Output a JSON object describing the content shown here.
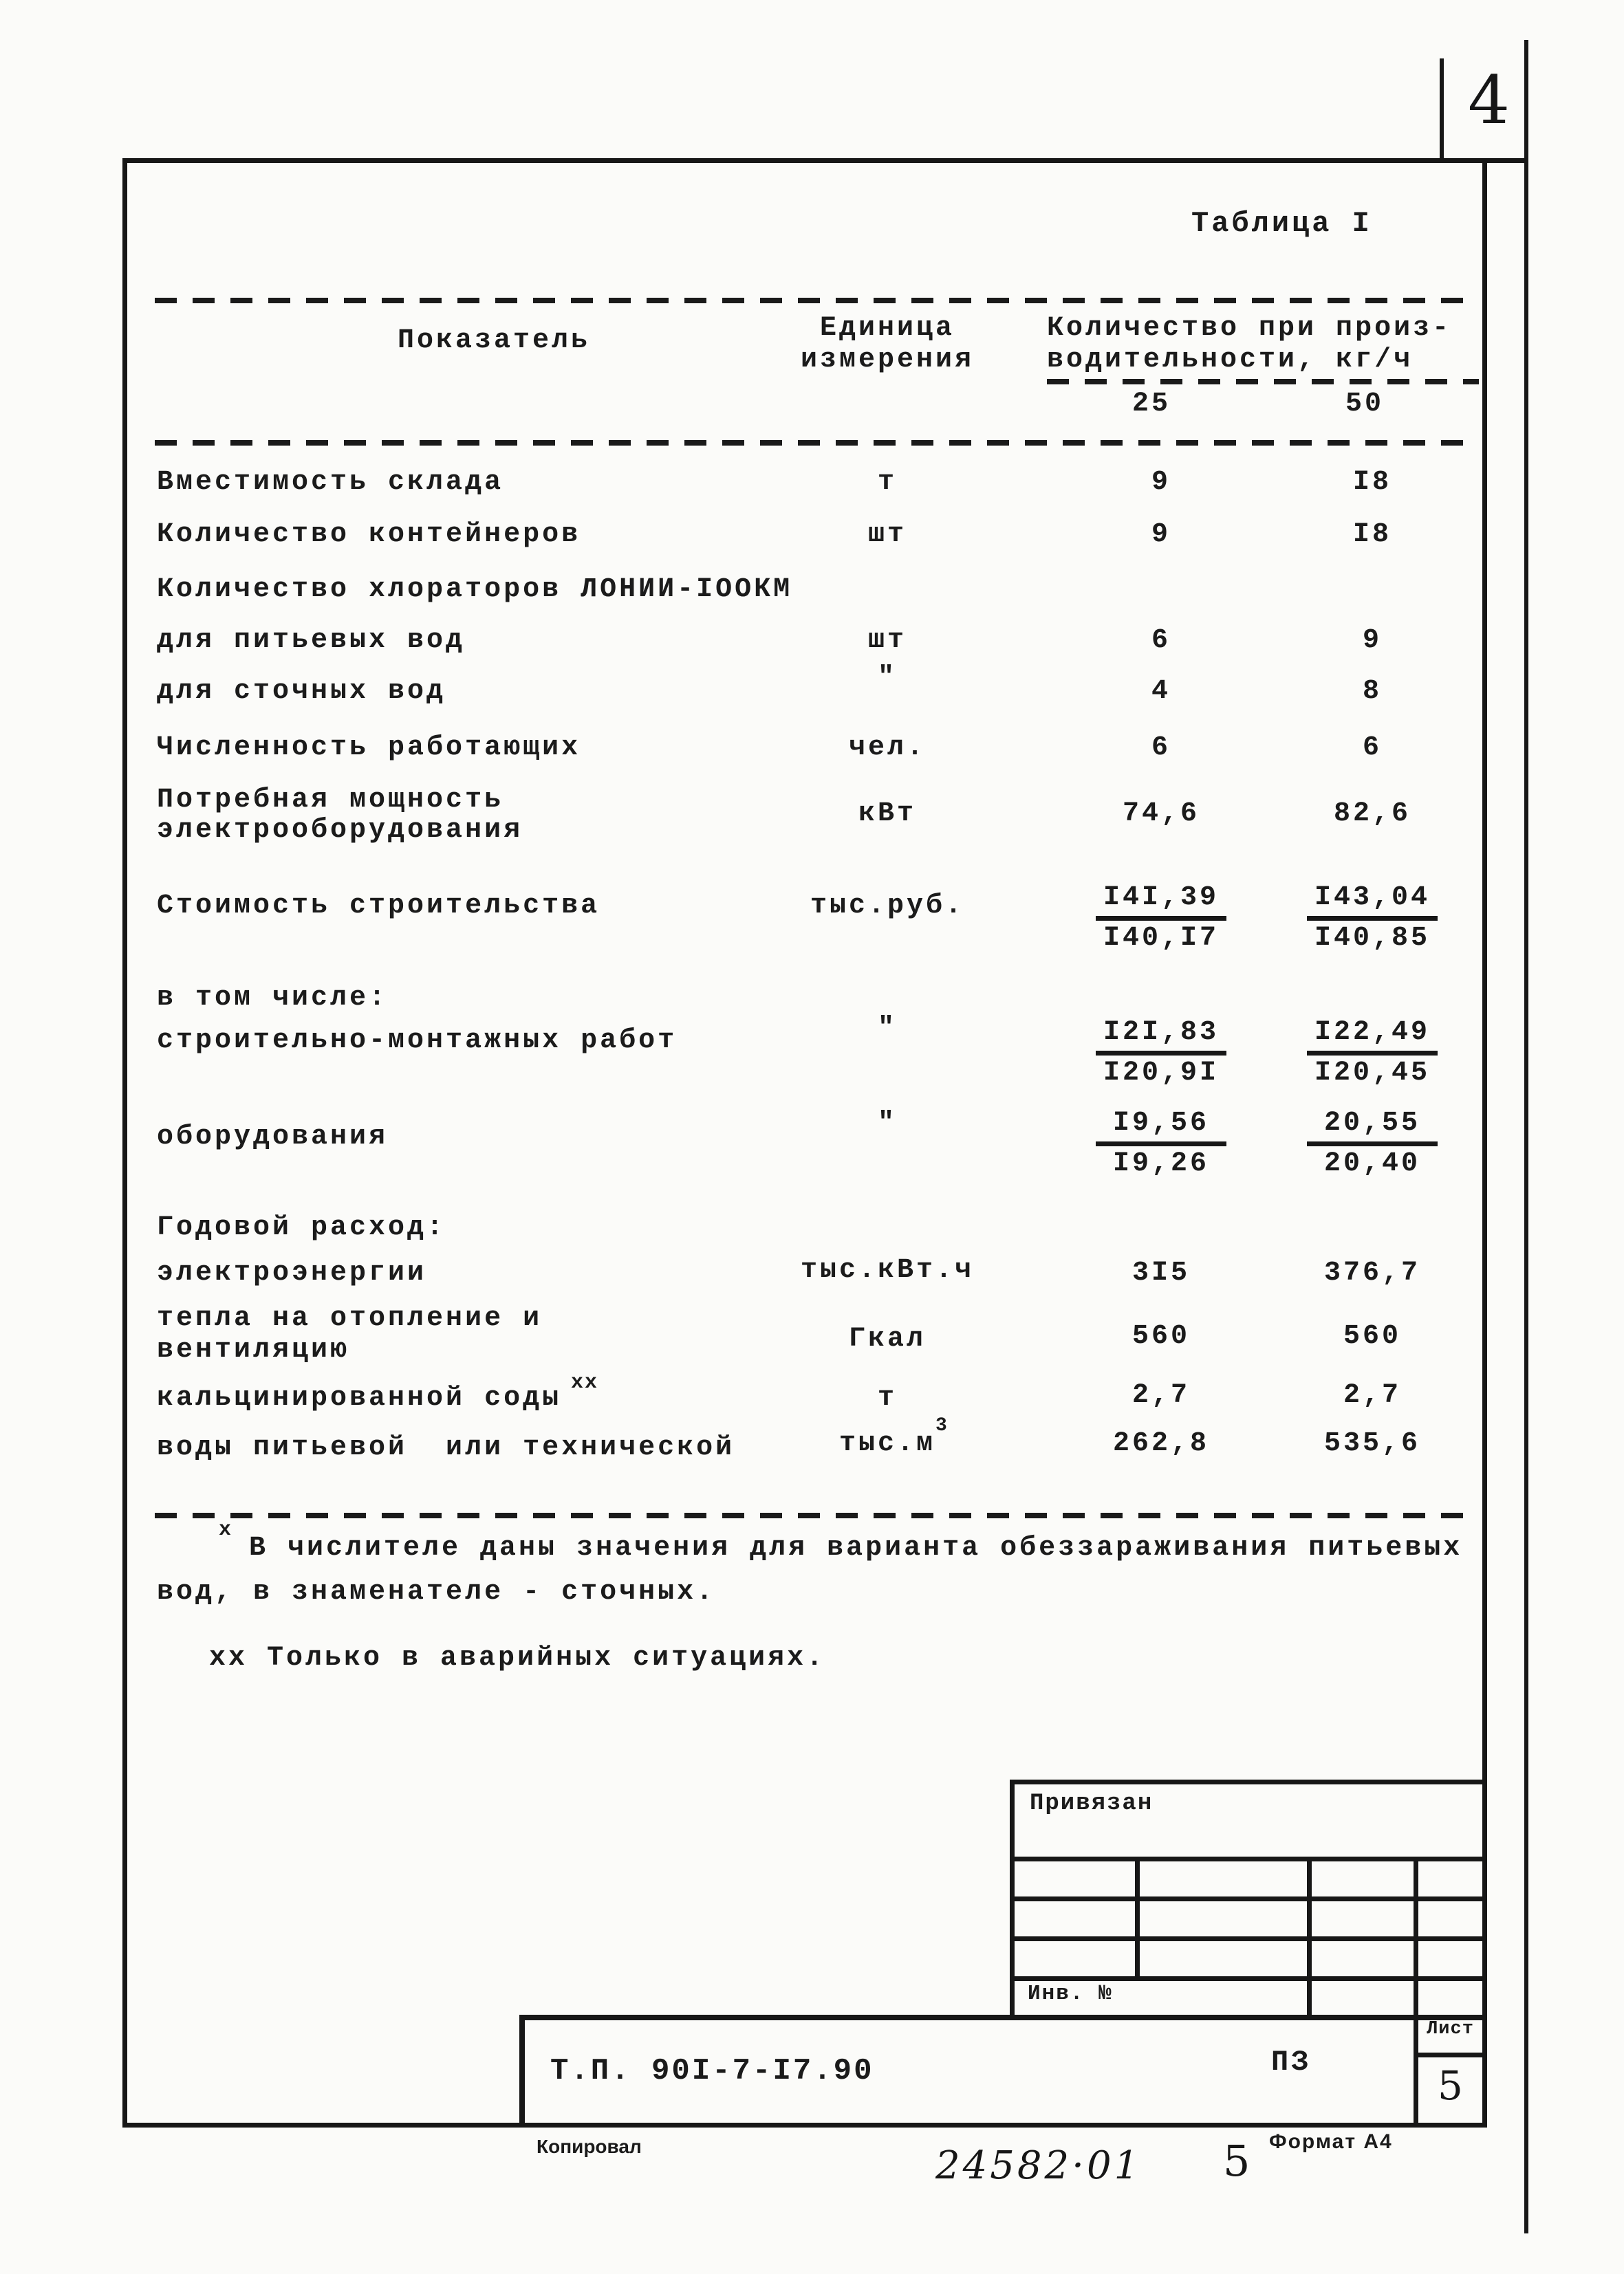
{
  "page": {
    "corner_number": "4"
  },
  "table": {
    "caption": "Таблица I",
    "header": {
      "indicator": "Показатель",
      "unit_line1": "Единица",
      "unit_line2": "измерения",
      "qty_line1": "Количество при произ-",
      "qty_line2": "водительности, кг/ч",
      "col25": "25",
      "col50": "50"
    },
    "rows": [
      {
        "label": "Вместимость склада",
        "unit": "т",
        "v25": "9",
        "v50": "I8"
      },
      {
        "label": "Количество контейнеров",
        "unit": "шт",
        "v25": "9",
        "v50": "I8"
      },
      {
        "label": "Количество хлораторов ЛОНИИ-IООКМ"
      },
      {
        "label": "для питьевых вод",
        "unit": "шт",
        "v25": "6",
        "v50": "9"
      },
      {
        "label": "для сточных вод",
        "unit": "\"",
        "v25": "4",
        "v50": "8"
      },
      {
        "label": "Численность работающих",
        "unit": "чел.",
        "v25": "6",
        "v50": "6"
      },
      {
        "label": "Потребная мощность",
        "label2": "электрооборудования",
        "unit": "кВт",
        "v25": "74,6",
        "v50": "82,6"
      },
      {
        "label": "Стоимость строительства",
        "unit": "тыс.руб.",
        "v25_num": "I4I,39",
        "v25_den": "I40,I7",
        "v50_num": "I43,04",
        "v50_den": "I40,85"
      },
      {
        "label": "в том числе:"
      },
      {
        "label": "строительно-монтажных работ",
        "unit": "\"",
        "v25_num": "I2I,83",
        "v25_den": "I20,9I",
        "v50_num": "I22,49",
        "v50_den": "I20,45"
      },
      {
        "label": "оборудования",
        "unit": "\"",
        "v25_num": "I9,56",
        "v25_den": "I9,26",
        "v50_num": "20,55",
        "v50_den": "20,40"
      },
      {
        "label": "Годовой расход:"
      },
      {
        "label": "электроэнергии",
        "unit": "тыс.кВт.ч",
        "v25": "3I5",
        "v50": "376,7"
      },
      {
        "label": "тепла на отопление и",
        "label2": "вентиляцию",
        "unit": "Гкал",
        "v25": "560",
        "v50": "560"
      },
      {
        "label": "кальцинированной соды",
        "label_sup": "хх",
        "unit": "т",
        "v25": "2,7",
        "v50": "2,7"
      },
      {
        "label": "воды питьевой  или технической",
        "unit": "тыс.м",
        "unit_sup": "3",
        "v25": "262,8",
        "v50": "535,6"
      }
    ]
  },
  "footnotes": {
    "marker": "х",
    "line1": "В числителе даны значения для варианта обеззараживания питьевых",
    "line2": "вод, в знаменателе - сточных.",
    "line3": "хх Только в аварийных ситуациях."
  },
  "titleblock": {
    "attached_label": "Привязан",
    "inventory_label": "Инв. №",
    "doc_number": "Т.П. 90I-7-I7.90",
    "doc_code": "ПЗ",
    "sheet_label": "Лист",
    "sheet_number": "5"
  },
  "footer": {
    "copied_label": "Копировал",
    "order_number": "24582·01",
    "page_number": "5",
    "format_label": "Формат А4"
  }
}
